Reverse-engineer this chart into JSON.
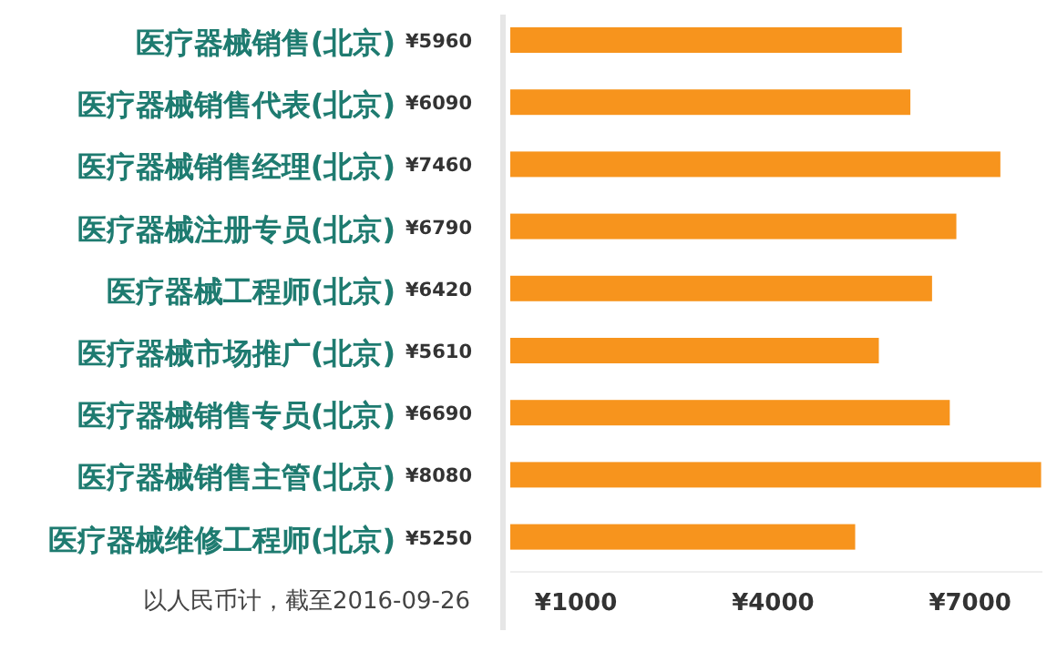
{
  "chart_data": {
    "type": "bar",
    "orientation": "horizontal",
    "categories": [
      "医疗器械销售(北京)",
      "医疗器械销售代表(北京)",
      "医疗器械销售经理(北京)",
      "医疗器械注册专员(北京)",
      "医疗器械工程师(北京)",
      "医疗器械市场推广(北京)",
      "医疗器械销售专员(北京)",
      "医疗器械销售主管(北京)",
      "医疗器械维修工程师(北京)"
    ],
    "values": [
      5960,
      6090,
      7460,
      6790,
      6420,
      5610,
      6690,
      8080,
      5250
    ],
    "value_labels": [
      "¥5960",
      "¥6090",
      "¥7460",
      "¥6790",
      "¥6420",
      "¥5610",
      "¥6690",
      "¥8080",
      "¥5250"
    ],
    "color": "#f7941d",
    "xticks": [
      {
        "value": 1000,
        "label": "¥1000"
      },
      {
        "value": 4000,
        "label": "¥4000"
      },
      {
        "value": 7000,
        "label": "¥7000"
      }
    ],
    "annotations": [
      "以人民币计，截至2016-09-26"
    ],
    "xlim": [
      0,
      8100
    ],
    "grid": false
  }
}
